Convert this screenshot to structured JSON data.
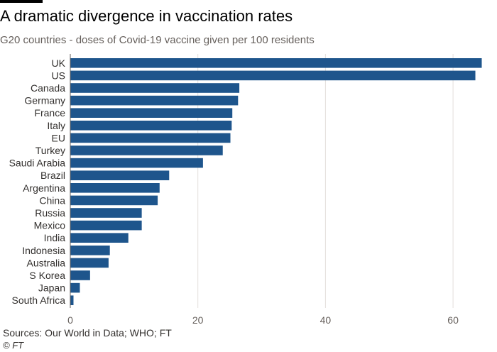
{
  "header": {
    "title": "A dramatic divergence in vaccination rates",
    "subtitle": "G20 countries - doses of Covid-19 vaccine given per 100 residents"
  },
  "footer": {
    "source": "Sources: Our World in Data; WHO; FT",
    "copyright": "© FT"
  },
  "colors": {
    "bar": "#1e558c",
    "grid": "#e3dfdb",
    "axis": "#66605c",
    "text": "#33302e"
  },
  "chart_data": {
    "type": "bar",
    "orientation": "horizontal",
    "title": "A dramatic divergence in vaccination rates",
    "subtitle": "G20 countries - doses of Covid-19 vaccine given per 100 residents",
    "xlabel": "",
    "ylabel": "",
    "categories": [
      "UK",
      "US",
      "Canada",
      "Germany",
      "France",
      "Italy",
      "EU",
      "Turkey",
      "Saudi Arabia",
      "Brazil",
      "Argentina",
      "China",
      "Russia",
      "Mexico",
      "India",
      "Indonesia",
      "Australia",
      "S Korea",
      "Japan",
      "South Africa"
    ],
    "values": [
      64.5,
      63.5,
      26.5,
      26.3,
      25.4,
      25.3,
      25.1,
      23.9,
      20.8,
      15.5,
      14.0,
      13.7,
      11.2,
      11.2,
      9.1,
      6.2,
      6.0,
      3.1,
      1.5,
      0.5
    ],
    "xlim": [
      0,
      65
    ],
    "xticks": [
      0,
      20,
      40,
      60
    ],
    "grid": true,
    "legend": "none"
  }
}
